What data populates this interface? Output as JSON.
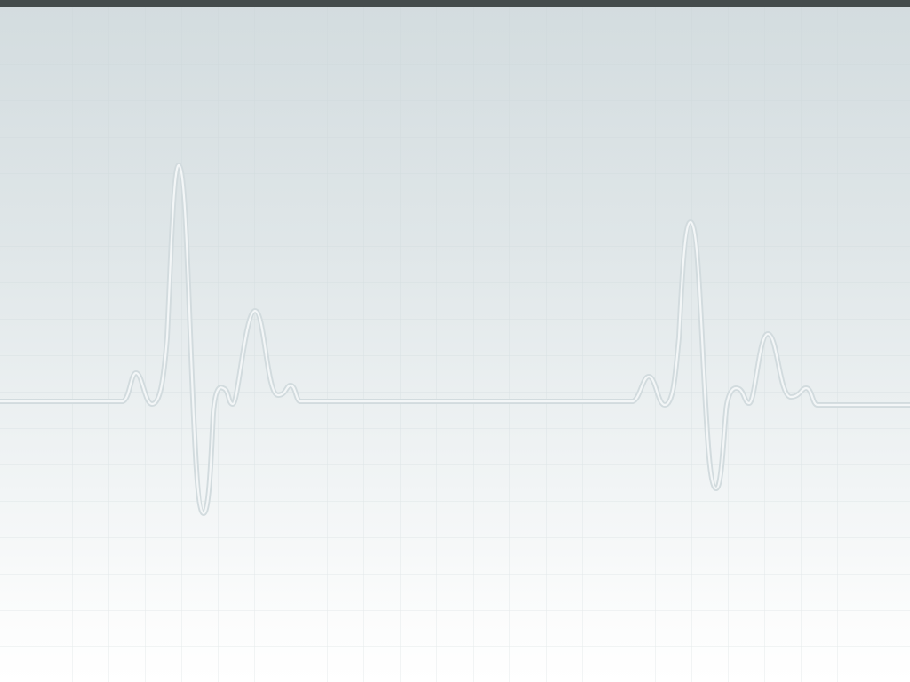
{
  "slide": {
    "theme": "ecg-heartbeat-background",
    "colors": {
      "top_bar": "#454c4c",
      "gradient_top": "#d3dcdf",
      "gradient_bottom": "#ffffff",
      "grid_line": "#c9d3d6",
      "trace_outline": "#d2dbde",
      "trace_fill": "#f3f6f7"
    },
    "icons": [
      "ecg-trace-icon"
    ]
  }
}
